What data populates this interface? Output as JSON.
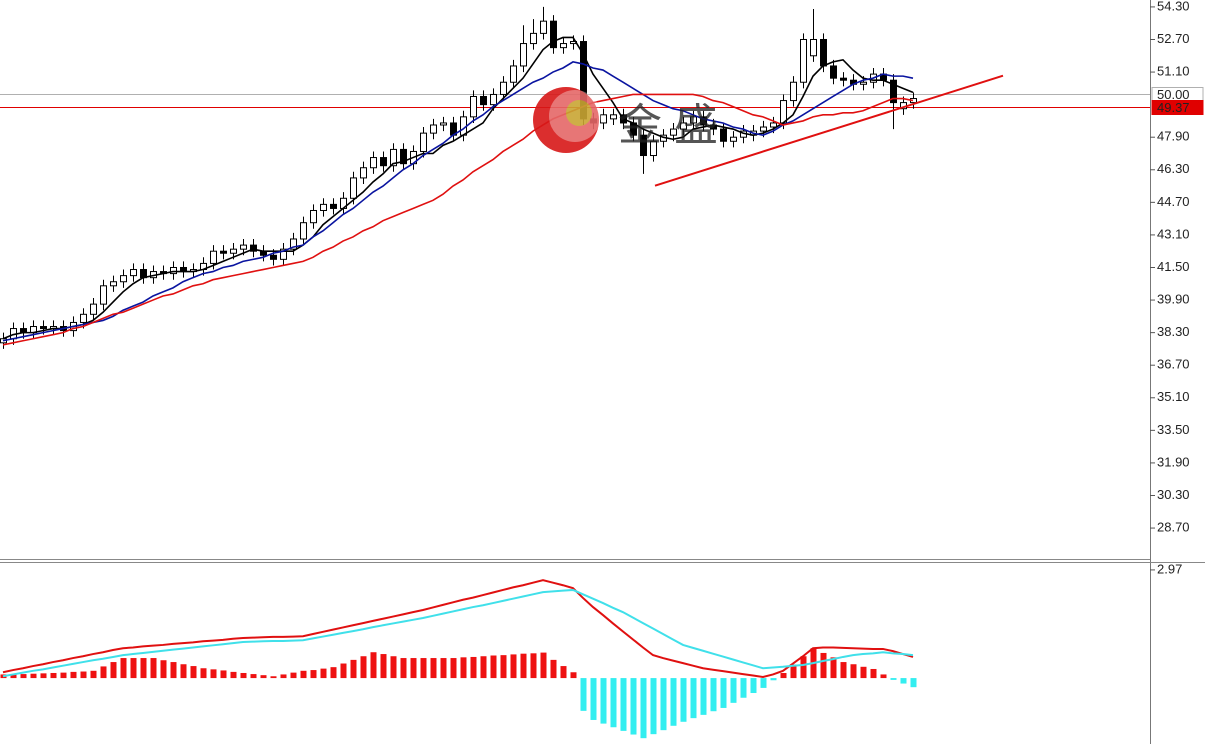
{
  "chart_data": [
    {
      "type": "candlestick",
      "open": [
        37.8,
        38.0,
        38.5,
        38.3,
        38.6,
        38.5,
        38.6,
        38.4,
        38.8,
        39.2,
        39.7,
        40.6,
        40.8,
        41.1,
        41.4,
        41.0,
        41.3,
        41.2,
        41.5,
        41.3,
        41.4,
        41.7,
        42.3,
        42.2,
        42.4,
        42.6,
        42.3,
        42.1,
        41.9,
        42.4,
        42.9,
        43.7,
        44.3,
        44.6,
        44.4,
        44.9,
        45.9,
        46.4,
        46.9,
        46.5,
        47.3,
        46.6,
        47.2,
        48.1,
        48.5,
        48.6,
        48.0,
        48.9,
        49.9,
        49.5,
        50.0,
        50.6,
        51.4,
        52.5,
        53.0,
        53.6,
        52.3,
        52.5,
        52.6,
        48.8,
        48.6,
        48.8,
        49.0,
        48.6,
        48.0,
        47.0,
        47.7,
        48.0,
        48.3,
        48.6,
        48.9,
        48.5,
        48.3,
        47.7,
        47.9,
        48.0,
        48.2,
        48.4,
        48.6,
        49.7,
        50.6,
        51.9,
        52.7,
        51.4,
        50.8,
        50.7,
        50.5,
        50.6,
        51.0,
        50.7,
        49.3,
        49.6
      ],
      "high": [
        38.3,
        38.8,
        38.8,
        38.9,
        38.9,
        38.9,
        38.9,
        39.1,
        39.5,
        40.0,
        40.9,
        41.1,
        41.4,
        41.7,
        41.7,
        41.6,
        41.6,
        41.8,
        41.8,
        41.7,
        42.0,
        42.6,
        42.6,
        42.7,
        42.9,
        42.9,
        42.6,
        42.4,
        42.7,
        43.2,
        44.0,
        44.6,
        44.9,
        44.9,
        45.2,
        46.2,
        46.7,
        47.2,
        47.2,
        47.6,
        47.6,
        47.5,
        48.4,
        48.8,
        48.9,
        48.9,
        49.2,
        50.2,
        50.2,
        50.3,
        50.9,
        51.7,
        53.4,
        53.7,
        54.3,
        53.9,
        52.8,
        52.9,
        52.9,
        49.1,
        49.3,
        49.3,
        49.3,
        48.9,
        48.3,
        48.0,
        48.3,
        48.6,
        48.9,
        49.2,
        49.2,
        48.8,
        48.6,
        48.2,
        48.5,
        48.5,
        48.7,
        48.9,
        50.0,
        50.9,
        53.0,
        54.2,
        53.0,
        51.7,
        51.1,
        51.0,
        50.9,
        51.3,
        51.3,
        51.0,
        49.9,
        50.1
      ],
      "low": [
        37.5,
        37.7,
        38.0,
        38.0,
        38.2,
        38.2,
        38.1,
        38.1,
        38.5,
        38.9,
        39.4,
        40.3,
        40.5,
        40.8,
        40.7,
        40.7,
        40.9,
        40.9,
        41.0,
        41.0,
        41.1,
        41.4,
        41.9,
        41.9,
        42.1,
        42.0,
        41.8,
        41.6,
        41.6,
        42.1,
        42.6,
        43.4,
        44.0,
        44.1,
        44.1,
        44.6,
        45.6,
        46.1,
        46.2,
        46.2,
        46.3,
        46.3,
        46.9,
        47.8,
        48.2,
        47.7,
        47.7,
        48.6,
        49.2,
        49.2,
        49.7,
        50.3,
        51.1,
        52.2,
        52.7,
        52.0,
        52.0,
        52.2,
        48.5,
        48.3,
        48.3,
        48.5,
        48.3,
        47.7,
        46.1,
        46.7,
        47.4,
        47.7,
        48.0,
        48.3,
        48.2,
        48.0,
        47.4,
        47.4,
        47.6,
        47.7,
        47.9,
        48.1,
        48.3,
        49.4,
        50.3,
        51.6,
        51.1,
        50.5,
        50.4,
        50.2,
        50.2,
        50.3,
        50.4,
        48.3,
        49.0,
        49.3
      ],
      "close": [
        38.0,
        38.5,
        38.3,
        38.6,
        38.5,
        38.6,
        38.4,
        38.8,
        39.2,
        39.7,
        40.6,
        40.8,
        41.1,
        41.4,
        41.0,
        41.3,
        41.2,
        41.5,
        41.3,
        41.4,
        41.7,
        42.3,
        42.2,
        42.4,
        42.6,
        42.3,
        42.1,
        41.9,
        42.4,
        42.9,
        43.7,
        44.3,
        44.6,
        44.4,
        44.9,
        45.9,
        46.4,
        46.9,
        46.5,
        47.3,
        46.6,
        47.2,
        48.1,
        48.5,
        48.6,
        48.0,
        48.9,
        49.9,
        49.5,
        50.0,
        50.6,
        51.4,
        52.5,
        53.0,
        53.6,
        52.3,
        52.5,
        52.6,
        48.8,
        48.6,
        49.0,
        49.0,
        48.6,
        48.0,
        47.0,
        47.7,
        48.0,
        48.3,
        48.6,
        48.9,
        48.5,
        48.3,
        47.7,
        47.9,
        48.2,
        48.2,
        48.4,
        48.6,
        49.7,
        50.6,
        52.7,
        52.7,
        51.4,
        50.8,
        50.7,
        50.5,
        50.6,
        51.0,
        50.7,
        49.6,
        49.6,
        49.8
      ],
      "up_color": "#ffffff",
      "down_color": "#000000",
      "wick_color": "#000000",
      "series": [
        {
          "color": "#000000",
          "values": [
            38.0,
            38.2,
            38.3,
            38.3,
            38.4,
            38.5,
            38.5,
            38.6,
            38.7,
            38.9,
            39.3,
            39.8,
            40.3,
            40.7,
            41.0,
            41.1,
            41.2,
            41.3,
            41.3,
            41.3,
            41.4,
            41.6,
            41.8,
            42.0,
            42.2,
            42.4,
            42.3,
            42.3,
            42.3,
            42.3,
            42.6,
            43.0,
            43.6,
            44.0,
            44.4,
            44.8,
            45.2,
            45.7,
            46.1,
            46.6,
            46.7,
            46.9,
            47.1,
            47.1,
            47.5,
            47.7,
            48.0,
            48.3,
            48.6,
            49.3,
            49.8,
            50.3,
            50.8,
            51.5,
            52.2,
            52.6,
            52.8,
            52.8,
            52.0,
            51.0,
            50.3,
            49.6,
            48.8,
            48.6,
            48.3,
            48.1,
            47.9,
            47.8,
            47.9,
            48.3,
            48.4,
            48.5,
            48.4,
            48.3,
            48.1,
            48.0,
            48.1,
            48.3,
            48.6,
            49.0,
            49.9,
            50.9,
            51.4,
            51.6,
            51.7,
            51.2,
            50.8,
            50.7,
            50.7,
            50.5,
            50.3,
            50.1
          ]
        },
        {
          "color": "#0a14a0",
          "values": [
            37.9,
            38.0,
            38.1,
            38.2,
            38.3,
            38.4,
            38.5,
            38.6,
            38.7,
            38.8,
            38.9,
            39.1,
            39.4,
            39.6,
            39.8,
            40.1,
            40.3,
            40.5,
            40.8,
            41.0,
            41.2,
            41.3,
            41.5,
            41.6,
            41.8,
            41.9,
            42.0,
            42.2,
            42.3,
            42.5,
            42.6,
            43.0,
            43.3,
            43.7,
            44.1,
            44.4,
            44.8,
            45.2,
            45.5,
            45.9,
            46.3,
            46.6,
            47.0,
            47.3,
            47.6,
            48.0,
            48.3,
            48.7,
            49.0,
            49.4,
            49.7,
            50.0,
            50.3,
            50.6,
            50.8,
            51.1,
            51.3,
            51.6,
            51.5,
            51.3,
            51.2,
            50.9,
            50.6,
            50.3,
            50.0,
            49.7,
            49.5,
            49.3,
            49.2,
            49.0,
            48.8,
            48.7,
            48.6,
            48.4,
            48.3,
            48.1,
            48.0,
            48.2,
            48.5,
            48.7,
            49.0,
            49.3,
            49.6,
            49.9,
            50.2,
            50.5,
            50.7,
            50.8,
            51.0,
            50.9,
            50.9,
            50.8
          ]
        },
        {
          "color": "#e01010",
          "values": [
            37.7,
            37.8,
            37.9,
            38.0,
            38.1,
            38.2,
            38.3,
            38.5,
            38.6,
            38.8,
            39.0,
            39.2,
            39.3,
            39.5,
            39.7,
            39.9,
            40.1,
            40.2,
            40.4,
            40.6,
            40.7,
            40.9,
            41.0,
            41.1,
            41.2,
            41.3,
            41.4,
            41.5,
            41.6,
            41.7,
            41.8,
            42.0,
            42.3,
            42.5,
            42.8,
            43.0,
            43.3,
            43.5,
            43.8,
            44.0,
            44.2,
            44.4,
            44.6,
            44.8,
            45.1,
            45.5,
            45.8,
            46.2,
            46.5,
            46.8,
            47.2,
            47.5,
            47.8,
            48.2,
            48.5,
            48.8,
            49.0,
            49.2,
            49.4,
            49.6,
            49.7,
            49.8,
            49.9,
            50.0,
            50.0,
            50.0,
            50.0,
            50.0,
            50.0,
            50.0,
            49.9,
            49.7,
            49.6,
            49.4,
            49.2,
            49.0,
            48.9,
            48.7,
            48.5,
            48.6,
            48.7,
            48.9,
            49.0,
            49.0,
            49.1,
            49.1,
            49.2,
            49.4,
            49.6,
            49.8,
            49.8,
            49.7
          ]
        }
      ],
      "ylim": [
        27.18,
        54.64
      ],
      "yticks": [
        {
          "value": 54.3,
          "label": "54.30"
        },
        {
          "value": 52.7,
          "label": "52.70"
        },
        {
          "value": 51.1,
          "label": "51.10"
        },
        {
          "value": 47.9,
          "label": "47.90"
        },
        {
          "value": 46.3,
          "label": "46.30"
        },
        {
          "value": 44.7,
          "label": "44.70"
        },
        {
          "value": 43.1,
          "label": "43.10"
        },
        {
          "value": 41.5,
          "label": "41.50"
        },
        {
          "value": 39.9,
          "label": "39.90"
        },
        {
          "value": 38.3,
          "label": "38.30"
        },
        {
          "value": 36.7,
          "label": "36.70"
        },
        {
          "value": 35.1,
          "label": "35.10"
        },
        {
          "value": 33.5,
          "label": "33.50"
        },
        {
          "value": 31.9,
          "label": "31.90"
        },
        {
          "value": 30.3,
          "label": "30.30"
        },
        {
          "value": 28.7,
          "label": "28.70"
        }
      ],
      "price_lines": [
        {
          "value": 50.0,
          "label": "50.00",
          "color": "#b0b0b0",
          "label_filled": false
        },
        {
          "value": 49.37,
          "label": "49.37",
          "color": "#e00000",
          "label_filled": true
        }
      ],
      "trendline": {
        "x": [
          65.2,
          100
        ],
        "y": [
          45.52,
          50.92
        ],
        "color": "#e01010"
      },
      "watermark": "金盛"
    },
    {
      "type": "macd",
      "histogram": {
        "positive_color": "#ee1111",
        "negative_color": "#33eef0",
        "values": [
          0.1,
          0.1,
          0.11,
          0.12,
          0.13,
          0.14,
          0.15,
          0.17,
          0.18,
          0.2,
          0.32,
          0.44,
          0.55,
          0.55,
          0.55,
          0.55,
          0.49,
          0.44,
          0.38,
          0.33,
          0.27,
          0.24,
          0.21,
          0.17,
          0.14,
          0.11,
          0.08,
          0.05,
          0.1,
          0.15,
          0.2,
          0.22,
          0.26,
          0.3,
          0.4,
          0.5,
          0.6,
          0.71,
          0.66,
          0.6,
          0.55,
          0.55,
          0.55,
          0.55,
          0.55,
          0.55,
          0.57,
          0.58,
          0.6,
          0.62,
          0.63,
          0.65,
          0.67,
          0.68,
          0.7,
          0.5,
          0.33,
          0.16,
          -0.9,
          -1.15,
          -1.25,
          -1.35,
          -1.45,
          -1.55,
          -1.65,
          -1.54,
          -1.43,
          -1.31,
          -1.2,
          -1.1,
          -1.01,
          -0.91,
          -0.82,
          -0.68,
          -0.54,
          -0.41,
          -0.27,
          -0.06,
          0.14,
          0.37,
          0.6,
          0.82,
          0.69,
          0.57,
          0.44,
          0.38,
          0.31,
          0.25,
          0.1,
          -0.05,
          -0.15,
          -0.25
        ]
      },
      "series": [
        {
          "color": "#e01010",
          "values": [
            0.16,
            0.22,
            0.27,
            0.33,
            0.38,
            0.44,
            0.49,
            0.55,
            0.6,
            0.66,
            0.71,
            0.77,
            0.82,
            0.84,
            0.87,
            0.89,
            0.91,
            0.94,
            0.96,
            0.98,
            1.01,
            1.03,
            1.05,
            1.08,
            1.1,
            1.11,
            1.12,
            1.13,
            1.13,
            1.14,
            1.15,
            1.21,
            1.27,
            1.33,
            1.39,
            1.45,
            1.51,
            1.57,
            1.63,
            1.69,
            1.75,
            1.81,
            1.87,
            1.94,
            2.01,
            2.08,
            2.15,
            2.21,
            2.28,
            2.35,
            2.42,
            2.49,
            2.55,
            2.62,
            2.69,
            2.62,
            2.55,
            2.47,
            2.2,
            1.95,
            1.73,
            1.5,
            1.28,
            1.06,
            0.84,
            0.63,
            0.55,
            0.48,
            0.41,
            0.34,
            0.27,
            0.23,
            0.19,
            0.15,
            0.11,
            0.07,
            0.03,
            0.1,
            0.2,
            0.4,
            0.6,
            0.82,
            0.84,
            0.84,
            0.83,
            0.82,
            0.81,
            0.8,
            0.8,
            0.74,
            0.66,
            0.58
          ]
        },
        {
          "color": "#40e0ea",
          "values": [
            0.05,
            0.1,
            0.15,
            0.2,
            0.24,
            0.29,
            0.34,
            0.39,
            0.44,
            0.49,
            0.53,
            0.58,
            0.63,
            0.66,
            0.69,
            0.72,
            0.75,
            0.78,
            0.81,
            0.84,
            0.87,
            0.9,
            0.93,
            0.96,
            0.99,
            1.0,
            1.01,
            1.02,
            1.02,
            1.03,
            1.04,
            1.09,
            1.14,
            1.19,
            1.24,
            1.29,
            1.34,
            1.4,
            1.45,
            1.5,
            1.55,
            1.6,
            1.65,
            1.71,
            1.77,
            1.83,
            1.89,
            1.95,
            2.0,
            2.06,
            2.12,
            2.18,
            2.24,
            2.3,
            2.36,
            2.38,
            2.4,
            2.42,
            2.3,
            2.18,
            2.06,
            1.93,
            1.81,
            1.66,
            1.51,
            1.36,
            1.21,
            1.06,
            0.91,
            0.83,
            0.75,
            0.67,
            0.59,
            0.51,
            0.43,
            0.35,
            0.27,
            0.29,
            0.31,
            0.34,
            0.36,
            0.41,
            0.47,
            0.52,
            0.58,
            0.63,
            0.66,
            0.68,
            0.71,
            0.68,
            0.66,
            0.63
          ]
        }
      ],
      "ylim": [
        -1.81,
        3.16
      ],
      "yticks": [
        2.97
      ]
    }
  ]
}
